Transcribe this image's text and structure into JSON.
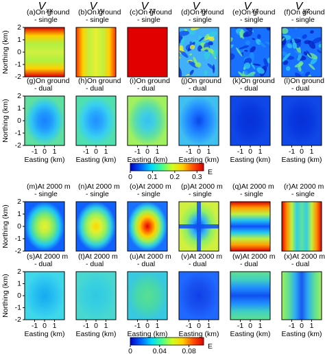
{
  "column_headers": [
    {
      "symbol": "V",
      "subscript": "xx"
    },
    {
      "symbol": "V",
      "subscript": "yy"
    },
    {
      "symbol": "V",
      "subscript": "zz"
    },
    {
      "symbol": "V",
      "subscript": "xy"
    },
    {
      "symbol": "V",
      "subscript": "xz"
    },
    {
      "symbol": "V",
      "subscript": "yz"
    }
  ],
  "groups": [
    {
      "rows": [
        {
          "panels": [
            {
              "line1": "(a)On ground",
              "line2": "- single"
            },
            {
              "line1": "(b)On ground",
              "line2": "- single"
            },
            {
              "line1": "(c)On ground",
              "line2": "- single"
            },
            {
              "line1": "(d)On ground",
              "line2": "- single"
            },
            {
              "line1": "(e)On ground",
              "line2": "- single"
            },
            {
              "line1": "(f)On ground",
              "line2": "- single"
            }
          ]
        },
        {
          "panels": [
            {
              "line1": "(g)On ground",
              "line2": "- dual"
            },
            {
              "line1": "(h)On ground",
              "line2": "- dual"
            },
            {
              "line1": "(i)On ground",
              "line2": "- dual"
            },
            {
              "line1": "(j)On ground",
              "line2": "- dual"
            },
            {
              "line1": "(k)On ground",
              "line2": "- dual"
            },
            {
              "line1": "(l)On ground",
              "line2": "- dual"
            }
          ]
        }
      ],
      "y_label": "Northing (km)",
      "x_label": "Easting (km)",
      "xlim": [
        -2,
        2
      ],
      "ylim": [
        -2,
        2
      ],
      "xticks": [
        -1,
        0,
        1
      ],
      "yticks": [
        -2,
        -1,
        0,
        1,
        2
      ],
      "colorbar": {
        "lim": [
          0,
          0.33
        ],
        "ticks": [
          0,
          0.1,
          0.2,
          0.3
        ],
        "unit": "E"
      }
    },
    {
      "rows": [
        {
          "panels": [
            {
              "line1": "(m)At 2000 m",
              "line2": "- single"
            },
            {
              "line1": "(n)At 2000 m",
              "line2": "- single"
            },
            {
              "line1": "(o)At 2000 m",
              "line2": "- single"
            },
            {
              "line1": "(p)At 2000 m",
              "line2": "- single"
            },
            {
              "line1": "(q)At 2000 m",
              "line2": "- single"
            },
            {
              "line1": "(r)At 2000 m",
              "line2": "- single"
            }
          ]
        },
        {
          "panels": [
            {
              "line1": "(s)At 2000 m",
              "line2": "- dual"
            },
            {
              "line1": "(t)At 2000 m",
              "line2": "- dual"
            },
            {
              "line1": "(u)At 2000 m",
              "line2": "- dual"
            },
            {
              "line1": "(v)At 2000 m",
              "line2": "- dual"
            },
            {
              "line1": "(w)At 2000 m",
              "line2": "- dual"
            },
            {
              "line1": "(x)At 2000 m",
              "line2": "- dual"
            }
          ]
        }
      ],
      "y_label": "Northing (km)",
      "x_label": "Easting (km)",
      "xlim": [
        -2,
        2
      ],
      "ylim": [
        -2,
        2
      ],
      "xticks": [
        -1,
        0,
        1
      ],
      "yticks": [
        -2,
        -1,
        0,
        1,
        2
      ],
      "colorbar": {
        "lim": [
          0,
          0.1
        ],
        "ticks": [
          0,
          0.04,
          0.08
        ],
        "unit": "E"
      }
    }
  ]
}
